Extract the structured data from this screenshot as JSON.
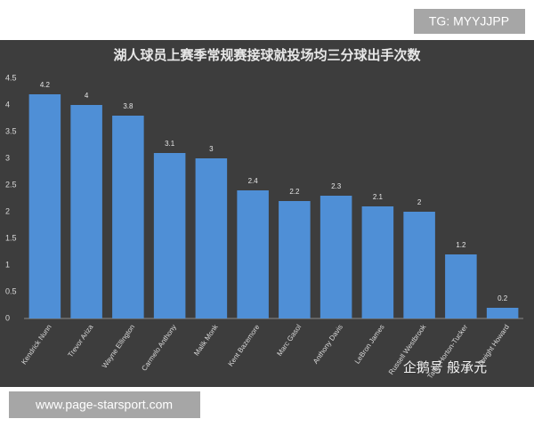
{
  "chart_data": {
    "type": "bar",
    "title": "湖人球员上赛季常规赛接球就投场均三分球出手次数",
    "categories": [
      "Kendrick Nunn",
      "Trevor Ariza",
      "Wayne Ellington",
      "Carmelo Anthony",
      "Malik Monk",
      "Kent Bazemore",
      "Marc Gasol",
      "Anthony Davis",
      "LeBron James",
      "Russell Westbrook",
      "Talen Horton-Tucker",
      "Dwight Howard"
    ],
    "values": [
      4.2,
      4,
      3.8,
      3.1,
      3,
      2.4,
      2.2,
      2.3,
      2.1,
      2,
      1.2,
      0.2
    ],
    "color": "#4f8fd6",
    "ylim": [
      0,
      4.5
    ],
    "yticks": [
      0,
      0.5,
      1,
      1.5,
      2,
      2.5,
      3,
      3.5,
      4,
      4.5
    ],
    "grid": false
  },
  "watermarks": {
    "top": "TG: MYYJJPP",
    "bottom": "www.page-starsport.com",
    "source": "企鹅号 般承元"
  }
}
